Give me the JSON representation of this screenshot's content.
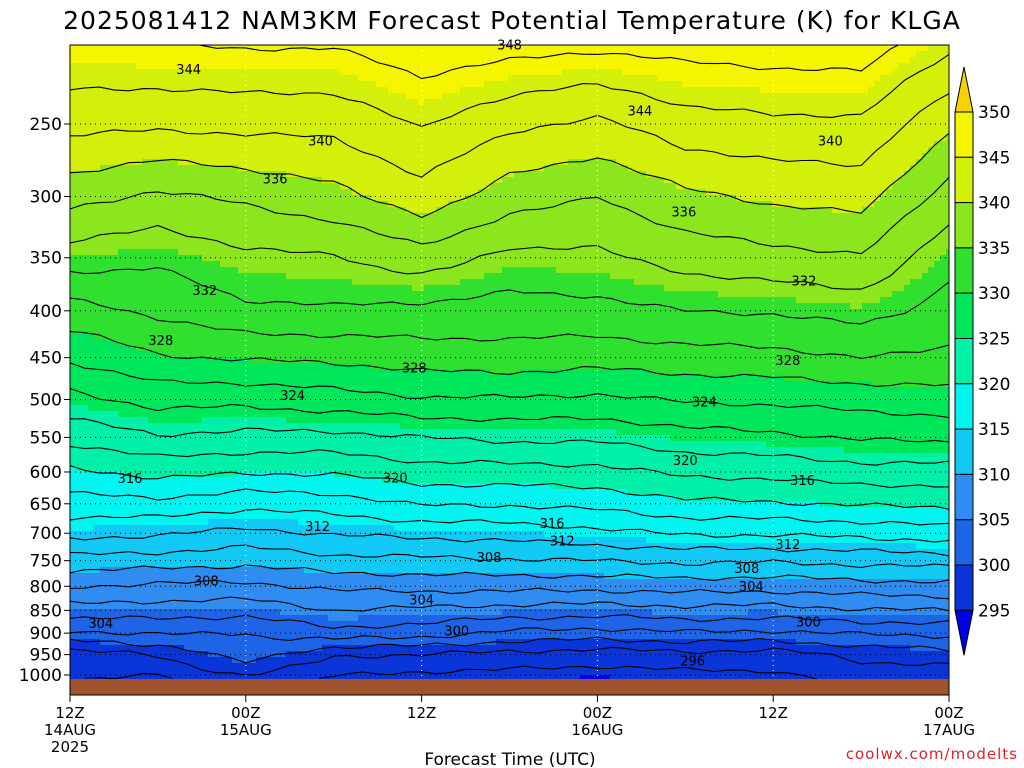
{
  "title": "2025081412 NAM3KM Forecast Potential Temperature (K) for KLGA",
  "credit": "coolwx.com/modelts",
  "chart_data": {
    "type": "heatmap",
    "title": "2025081412 NAM3KM Forecast Potential Temperature (K) for KLGA",
    "xlabel": "Forecast Time (UTC)",
    "ylabel": "",
    "y_scale": "log-pressure, inverted",
    "y_ticks": [
      250,
      300,
      350,
      400,
      450,
      500,
      550,
      600,
      650,
      700,
      750,
      800,
      850,
      900,
      950,
      1000
    ],
    "ylim": [
      1010,
      200
    ],
    "x_ticks": [
      {
        "hour": 0,
        "l1": "12Z",
        "l2": "14AUG",
        "l3": "2025"
      },
      {
        "hour": 12,
        "l1": "00Z",
        "l2": "15AUG",
        "l3": ""
      },
      {
        "hour": 24,
        "l1": "12Z",
        "l2": "",
        "l3": ""
      },
      {
        "hour": 36,
        "l1": "00Z",
        "l2": "16AUG",
        "l3": ""
      },
      {
        "hour": 48,
        "l1": "12Z",
        "l2": "",
        "l3": ""
      },
      {
        "hour": 60,
        "l1": "00Z",
        "l2": "17AUG",
        "l3": ""
      }
    ],
    "xlim": [
      0,
      60
    ],
    "grid": "dotted",
    "colorbar": {
      "levels": [
        295,
        300,
        305,
        310,
        315,
        320,
        325,
        330,
        335,
        340,
        345,
        350
      ],
      "colors": [
        "#0000e6",
        "#0a35d8",
        "#1e64e6",
        "#2f8cf0",
        "#12c8f5",
        "#00f5f0",
        "#00f0a8",
        "#00e65a",
        "#2fe02f",
        "#8ce61e",
        "#d2f00a",
        "#f5f500",
        "#f5d200"
      ]
    },
    "columns": [
      {
        "hour": 0,
        "theta": [
          296.2,
          297.0,
          301.6,
          305.2,
          308.1,
          311.3,
          314.6,
          317.2,
          319.6,
          322.6,
          325.4,
          328.3,
          331.2,
          335.0,
          338.8,
          342.6,
          346.2
        ]
      },
      {
        "hour": 6,
        "theta": [
          296.0,
          298.2,
          302.2,
          305.0,
          307.6,
          311.0,
          314.3,
          317.4,
          320.6,
          323.8,
          326.7,
          329.8,
          332.4,
          334.4,
          337.6,
          342.4,
          346.4
        ]
      },
      {
        "hour": 12,
        "theta": [
          298.1,
          301.2,
          302.0,
          304.7,
          307.5,
          310.6,
          313.4,
          316.6,
          320.2,
          323.4,
          326.6,
          330.2,
          333.6,
          335.6,
          338.4,
          342.6,
          346.6
        ]
      },
      {
        "hour": 18,
        "theta": [
          296.1,
          298.2,
          303.4,
          306.0,
          308.4,
          311.4,
          314.2,
          317.0,
          320.2,
          323.4,
          327.2,
          330.4,
          333.8,
          335.8,
          339.4,
          342.6,
          346.6
        ]
      },
      {
        "hour": 24,
        "theta": [
          295.6,
          298.0,
          302.8,
          305.6,
          308.6,
          311.6,
          314.5,
          318.2,
          321.2,
          324.0,
          327.8,
          331.0,
          333.4,
          337.2,
          341.2,
          344.2,
          347.6
        ]
      },
      {
        "hour": 30,
        "theta": [
          295.5,
          297.3,
          301.6,
          305.2,
          308.7,
          311.8,
          314.8,
          318.2,
          321.2,
          324.4,
          327.8,
          331.2,
          333.2,
          335.4,
          339.0,
          342.4,
          347.4
        ]
      },
      {
        "hour": 36,
        "theta": [
          295.2,
          297.0,
          301.2,
          305.0,
          308.6,
          312.0,
          315.5,
          318.6,
          321.4,
          324.4,
          327.6,
          330.8,
          333.4,
          335.6,
          338.0,
          341.6,
          347.0
        ]
      },
      {
        "hour": 42,
        "theta": [
          295.6,
          297.3,
          301.8,
          305.4,
          308.9,
          312.4,
          316.2,
          319.6,
          322.4,
          325.2,
          328.2,
          331.2,
          334.0,
          336.8,
          339.6,
          343.2,
          347.2
        ]
      },
      {
        "hour": 48,
        "theta": [
          295.7,
          297.1,
          301.6,
          305.2,
          308.7,
          312.2,
          316.3,
          319.8,
          322.6,
          325.6,
          328.4,
          331.4,
          334.2,
          337.4,
          340.4,
          343.6,
          347.4
        ]
      },
      {
        "hour": 54,
        "theta": [
          296.8,
          298.6,
          302.2,
          305.8,
          309.2,
          312.6,
          316.6,
          320.2,
          323.2,
          326.2,
          328.8,
          332.0,
          334.8,
          337.8,
          340.8,
          343.6,
          347.6
        ]
      },
      {
        "hour": 60,
        "theta": [
          296.8,
          299.3,
          302.4,
          306.0,
          309.4,
          312.8,
          317.2,
          320.4,
          323.2,
          326.4,
          329.2,
          331.6,
          333.2,
          334.6,
          337.2,
          340.4,
          345.0
        ]
      }
    ],
    "column_levels_hpa": [
      1000,
      950,
      900,
      850,
      800,
      750,
      700,
      650,
      600,
      550,
      500,
      450,
      400,
      350,
      300,
      250,
      200
    ],
    "contour_interval": 2,
    "contour_label_values": [
      296,
      300,
      304,
      308,
      312,
      316,
      320,
      324,
      328,
      332,
      336,
      340,
      344,
      348
    ],
    "labels": [
      {
        "text": "348",
        "hour": 30.0,
        "hpa": 205
      },
      {
        "text": "344",
        "hour": 8.1,
        "hpa": 218
      },
      {
        "text": "344",
        "hour": 38.9,
        "hpa": 242
      },
      {
        "text": "340",
        "hour": 17.1,
        "hpa": 261
      },
      {
        "text": "340",
        "hour": 51.9,
        "hpa": 261
      },
      {
        "text": "336",
        "hour": 14.0,
        "hpa": 287
      },
      {
        "text": "336",
        "hour": 41.9,
        "hpa": 312
      },
      {
        "text": "332",
        "hour": 9.2,
        "hpa": 380
      },
      {
        "text": "332",
        "hour": 50.1,
        "hpa": 371
      },
      {
        "text": "328",
        "hour": 6.2,
        "hpa": 431
      },
      {
        "text": "328",
        "hour": 23.5,
        "hpa": 462
      },
      {
        "text": "328",
        "hour": 49.0,
        "hpa": 453
      },
      {
        "text": "324",
        "hour": 15.2,
        "hpa": 495
      },
      {
        "text": "324",
        "hour": 43.3,
        "hpa": 503
      },
      {
        "text": "320",
        "hour": 42.0,
        "hpa": 583
      },
      {
        "text": "320",
        "hour": 22.2,
        "hpa": 609
      },
      {
        "text": "316",
        "hour": 4.1,
        "hpa": 610
      },
      {
        "text": "316",
        "hour": 32.9,
        "hpa": 683
      },
      {
        "text": "316",
        "hour": 50.0,
        "hpa": 613
      },
      {
        "text": "312",
        "hour": 16.9,
        "hpa": 688
      },
      {
        "text": "312",
        "hour": 33.6,
        "hpa": 714
      },
      {
        "text": "312",
        "hour": 49.0,
        "hpa": 720
      },
      {
        "text": "308",
        "hour": 28.6,
        "hpa": 744
      },
      {
        "text": "308",
        "hour": 9.3,
        "hpa": 789
      },
      {
        "text": "308",
        "hour": 46.2,
        "hpa": 765
      },
      {
        "text": "304",
        "hour": 2.1,
        "hpa": 879
      },
      {
        "text": "304",
        "hour": 24.0,
        "hpa": 828
      },
      {
        "text": "304",
        "hour": 46.5,
        "hpa": 800
      },
      {
        "text": "300",
        "hour": 26.4,
        "hpa": 895
      },
      {
        "text": "300",
        "hour": 50.4,
        "hpa": 875
      },
      {
        "text": "296",
        "hour": 42.5,
        "hpa": 965
      }
    ]
  }
}
